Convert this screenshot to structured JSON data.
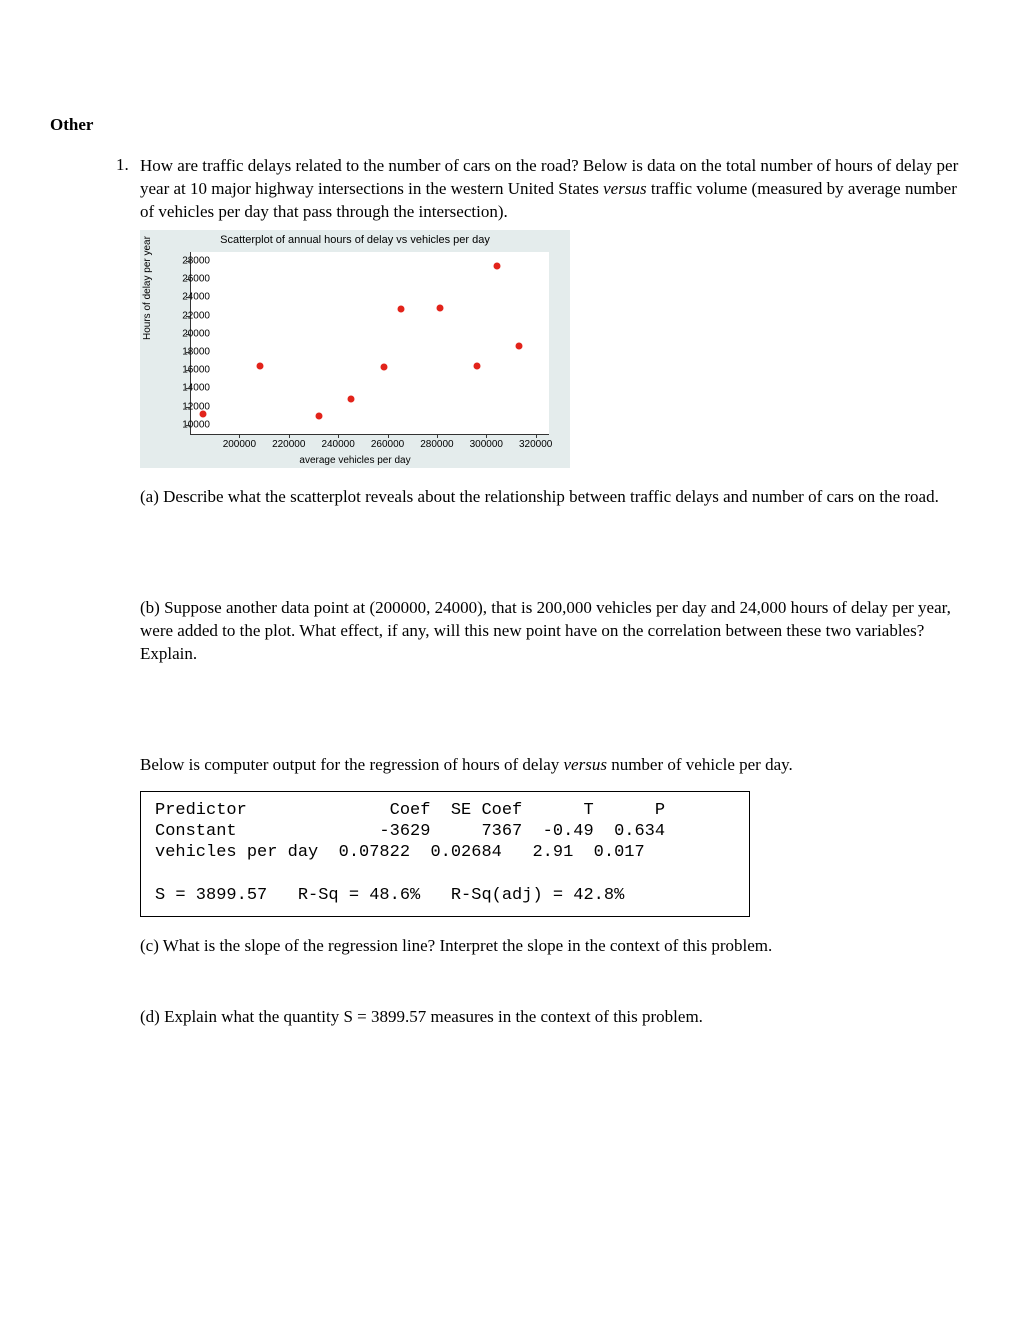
{
  "heading": "Other",
  "q_number": "1.",
  "intro_1": "How are traffic delays related to the number of cars on the road?  Below is data on the total number of hours of delay per year at 10 major highway intersections in the western United States ",
  "intro_versus": "versus",
  "intro_2": " traffic volume (measured by average number of vehicles per day that pass through the intersection).",
  "chart": {
    "title": "Scatterplot of annual hours of delay vs vehicles per day",
    "x_label": "average vehicles per day",
    "y_label": "Hours of delay per year",
    "x_min": 180000,
    "x_max": 325000,
    "y_min": 9000,
    "y_max": 29000,
    "x_ticks": [
      200000,
      220000,
      240000,
      260000,
      280000,
      300000,
      320000
    ],
    "y_ticks": [
      10000,
      12000,
      14000,
      16000,
      18000,
      20000,
      22000,
      24000,
      26000,
      28000
    ],
    "points": [
      {
        "x": 185000,
        "y": 11200
      },
      {
        "x": 208000,
        "y": 16500
      },
      {
        "x": 232000,
        "y": 11000
      },
      {
        "x": 245000,
        "y": 12800
      },
      {
        "x": 258000,
        "y": 16300
      },
      {
        "x": 265000,
        "y": 22700
      },
      {
        "x": 281000,
        "y": 22800
      },
      {
        "x": 296000,
        "y": 16400
      },
      {
        "x": 304000,
        "y": 27400
      },
      {
        "x": 313000,
        "y": 18600
      }
    ],
    "dot_color": "#e2231a",
    "bg_color": "#e4ecec"
  },
  "part_a": "(a) Describe what the scatterplot reveals about the relationship between traffic delays and number of cars on the road.",
  "part_b": "(b) Suppose another data point at (200000, 24000), that is 200,000 vehicles per day and 24,000 hours of delay per year, were added to the plot.  What effect, if any, will this new point have on the correlation between these two variables?  Explain.",
  "below_output_1": "Below is computer output for the regression of hours of delay ",
  "below_output_versus": "versus",
  "below_output_2": " number of vehicle per day.",
  "regression_lines": [
    "Predictor              Coef  SE Coef      T      P",
    "Constant              -3629     7367  -0.49  0.634",
    "vehicles per day  0.07822  0.02684   2.91  0.017",
    "",
    "S = 3899.57   R-Sq = 48.6%   R-Sq(adj) = 42.8%"
  ],
  "part_c": "(c)  What is the slope of the regression line?  Interpret the slope in the context of this problem.",
  "part_d": "(d)  Explain what the quantity S = 3899.57 measures in the context of this problem."
}
